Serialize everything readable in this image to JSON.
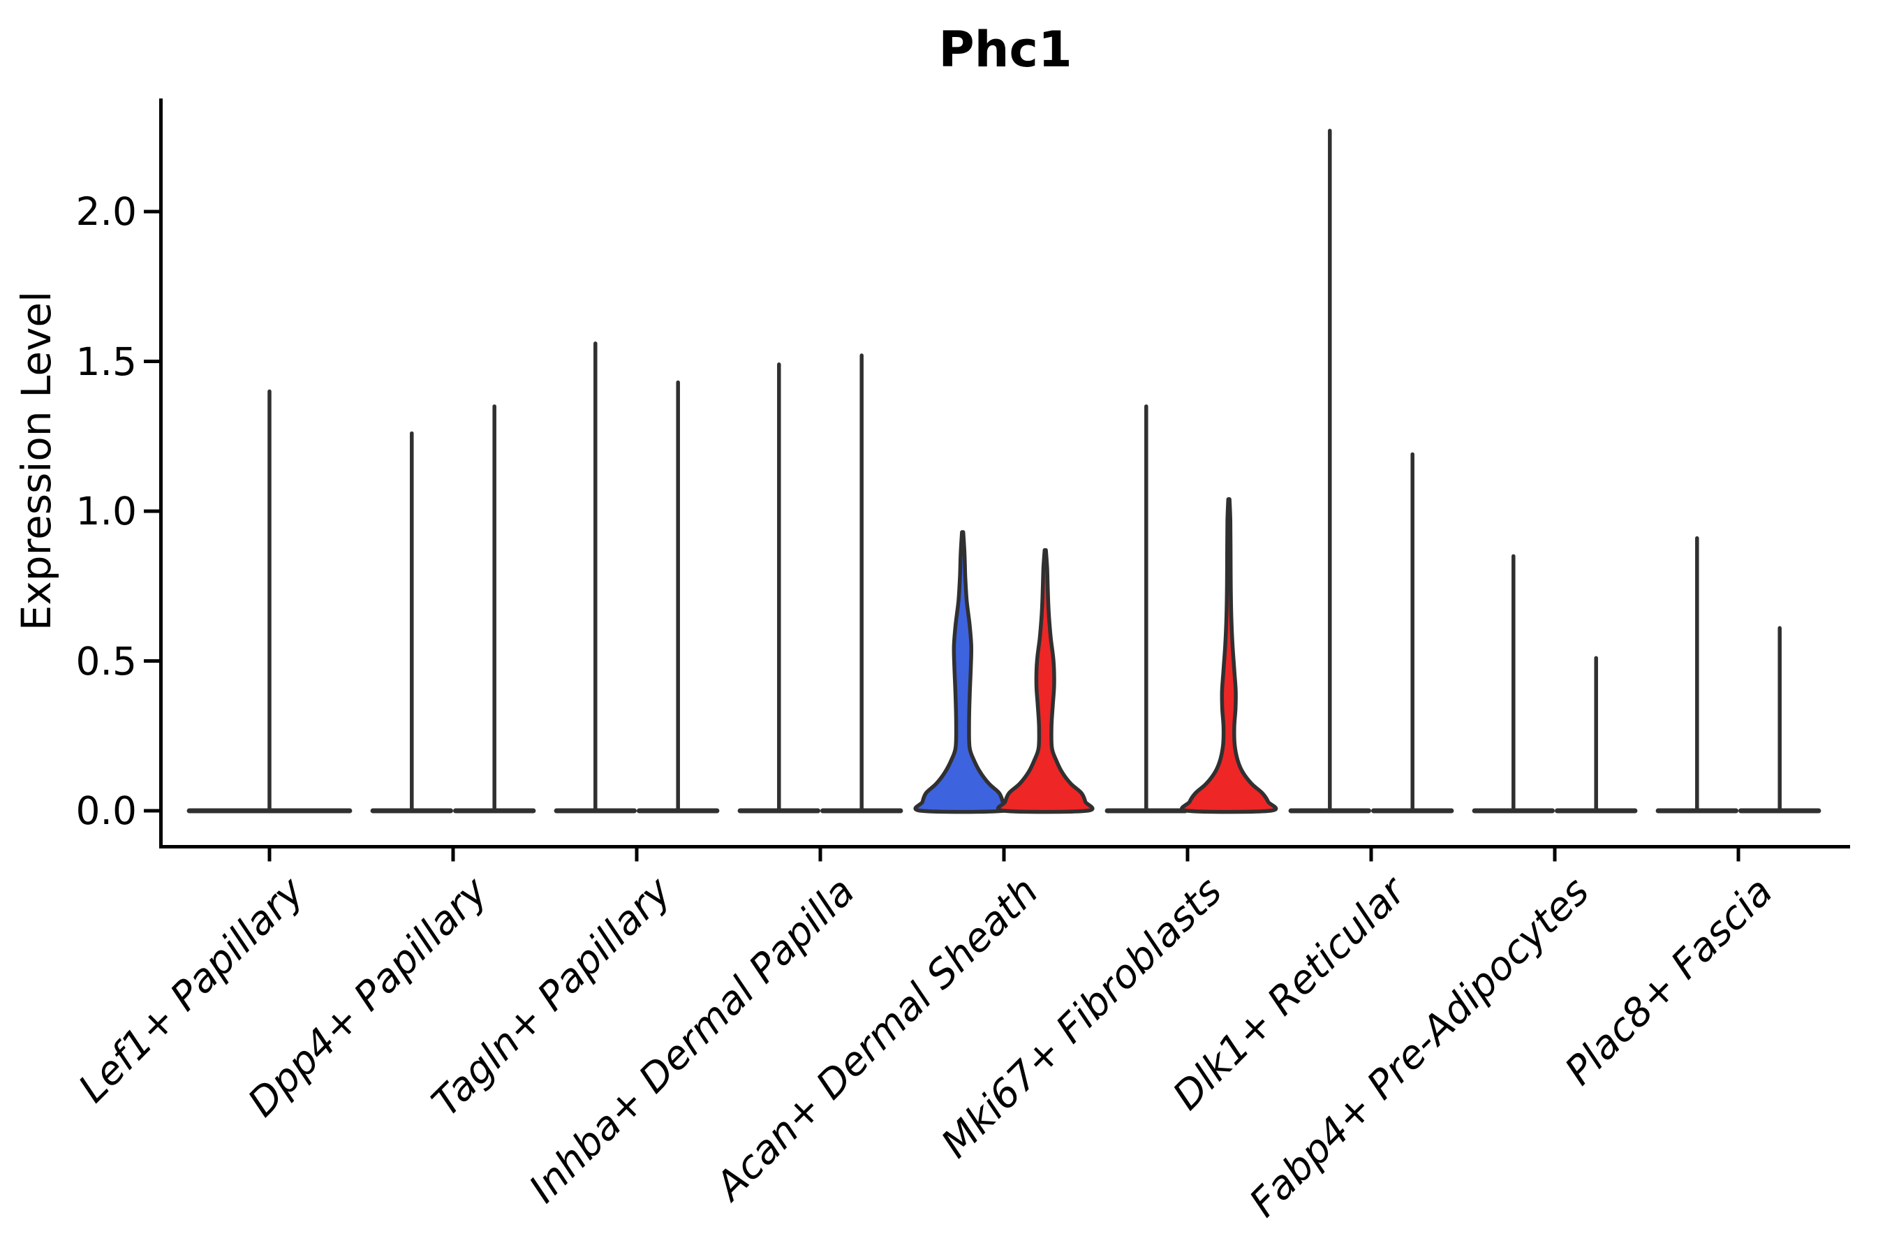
{
  "title": "Phc1",
  "colors": {
    "violin_blue": "#3E63DF",
    "violin_red": "#EE2626",
    "violin_outline": "#303030",
    "axis": "#000000",
    "background": "#FFFFFF"
  },
  "y_axis": {
    "label": "Expression Level",
    "ticks": [
      {
        "label": "2.0",
        "value": 2.0
      },
      {
        "label": "1.5",
        "value": 1.5
      },
      {
        "label": "1.0",
        "value": 1.0
      },
      {
        "label": "0.5",
        "value": 0.5
      },
      {
        "label": "0.0",
        "value": 0.0
      }
    ]
  },
  "chart_data": {
    "type": "violin",
    "title": "Phc1",
    "xlabel": "",
    "ylabel": "Expression Level",
    "ylim": [
      -0.11,
      2.37
    ],
    "yticks": [
      0.0,
      0.5,
      1.0,
      1.5,
      2.0
    ],
    "grid": false,
    "legend_position": "none",
    "categories": [
      "Lef1+ Papillary",
      "Dpp4+ Papillary",
      "Tagln+ Papillary",
      "Inhba+ Dermal Papilla",
      "Acan+ Dermal Sheath",
      "Mki67+ Fibroblasts",
      "Dlk1+ Reticular",
      "Fabp4+ Pre-Adipocytes",
      "Plac8+ Fascia"
    ],
    "groups_per_category": 2,
    "violins": [
      {
        "category_index": 0,
        "position": "single",
        "max": 1.4,
        "fill": "none",
        "shape": "spike"
      },
      {
        "category_index": 1,
        "position": "left",
        "max": 1.26,
        "fill": "none",
        "shape": "spike"
      },
      {
        "category_index": 1,
        "position": "right",
        "max": 1.35,
        "fill": "none",
        "shape": "spike"
      },
      {
        "category_index": 2,
        "position": "left",
        "max": 1.56,
        "fill": "none",
        "shape": "spike"
      },
      {
        "category_index": 2,
        "position": "right",
        "max": 1.43,
        "fill": "none",
        "shape": "spike"
      },
      {
        "category_index": 3,
        "position": "left",
        "max": 1.49,
        "fill": "none",
        "shape": "spike"
      },
      {
        "category_index": 3,
        "position": "right",
        "max": 1.52,
        "fill": "none",
        "shape": "spike"
      },
      {
        "category_index": 4,
        "position": "left",
        "max": 0.93,
        "fill": "blue",
        "shape": "profile",
        "profile": [
          [
            0.0,
            1.0
          ],
          [
            0.03,
            0.97
          ],
          [
            0.06,
            0.88
          ],
          [
            0.09,
            0.64
          ],
          [
            0.13,
            0.42
          ],
          [
            0.17,
            0.27
          ],
          [
            0.21,
            0.17
          ],
          [
            0.28,
            0.155
          ],
          [
            0.38,
            0.17
          ],
          [
            0.48,
            0.2
          ],
          [
            0.55,
            0.21
          ],
          [
            0.62,
            0.17
          ],
          [
            0.7,
            0.1
          ],
          [
            0.78,
            0.065
          ],
          [
            0.86,
            0.045
          ],
          [
            0.93,
            0.015
          ]
        ]
      },
      {
        "category_index": 4,
        "position": "right",
        "max": 0.87,
        "fill": "red",
        "shape": "profile",
        "profile": [
          [
            0.0,
            1.0
          ],
          [
            0.03,
            0.97
          ],
          [
            0.06,
            0.87
          ],
          [
            0.09,
            0.62
          ],
          [
            0.13,
            0.4
          ],
          [
            0.17,
            0.26
          ],
          [
            0.21,
            0.16
          ],
          [
            0.28,
            0.15
          ],
          [
            0.35,
            0.18
          ],
          [
            0.42,
            0.215
          ],
          [
            0.5,
            0.2
          ],
          [
            0.58,
            0.13
          ],
          [
            0.66,
            0.085
          ],
          [
            0.74,
            0.06
          ],
          [
            0.81,
            0.045
          ],
          [
            0.87,
            0.015
          ]
        ]
      },
      {
        "category_index": 5,
        "position": "left",
        "max": 1.35,
        "fill": "none",
        "shape": "spike"
      },
      {
        "category_index": 5,
        "position": "right",
        "max": 1.04,
        "fill": "red",
        "shape": "profile",
        "profile": [
          [
            0.0,
            1.0
          ],
          [
            0.03,
            0.95
          ],
          [
            0.06,
            0.8
          ],
          [
            0.09,
            0.55
          ],
          [
            0.13,
            0.33
          ],
          [
            0.17,
            0.21
          ],
          [
            0.22,
            0.14
          ],
          [
            0.28,
            0.13
          ],
          [
            0.34,
            0.16
          ],
          [
            0.4,
            0.165
          ],
          [
            0.47,
            0.13
          ],
          [
            0.55,
            0.09
          ],
          [
            0.64,
            0.06
          ],
          [
            0.75,
            0.045
          ],
          [
            0.88,
            0.04
          ],
          [
            0.97,
            0.035
          ],
          [
            1.04,
            0.015
          ]
        ]
      },
      {
        "category_index": 6,
        "position": "left",
        "max": 2.27,
        "fill": "none",
        "shape": "spike"
      },
      {
        "category_index": 6,
        "position": "right",
        "max": 1.19,
        "fill": "none",
        "shape": "spike"
      },
      {
        "category_index": 7,
        "position": "left",
        "max": 0.85,
        "fill": "none",
        "shape": "spike"
      },
      {
        "category_index": 7,
        "position": "right",
        "max": 0.51,
        "fill": "none",
        "shape": "spike"
      },
      {
        "category_index": 8,
        "position": "left",
        "max": 0.91,
        "fill": "none",
        "shape": "spike"
      },
      {
        "category_index": 8,
        "position": "right",
        "max": 0.61,
        "fill": "none",
        "shape": "spike"
      }
    ]
  }
}
